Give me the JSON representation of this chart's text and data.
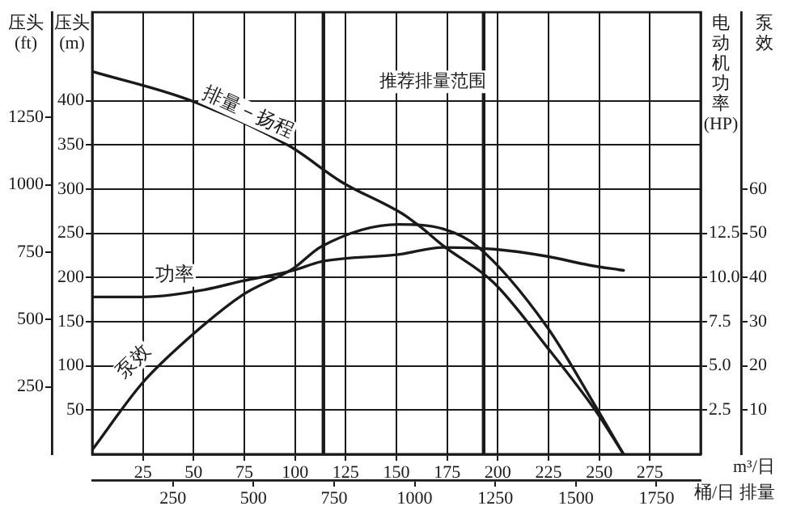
{
  "chart_data": [
    {
      "type": "line",
      "xlabel": "m³/日",
      "x2label": "桶/日 排量",
      "ylabel": "压头(m)",
      "y2label": "压头(ft)",
      "xlim": [
        0,
        300
      ],
      "xticks": [
        25,
        50,
        75,
        100,
        125,
        150,
        175,
        200,
        225,
        250,
        275
      ],
      "x2lim": [
        0,
        1887
      ],
      "x2ticks": [
        250,
        500,
        750,
        1000,
        1250,
        1500,
        1750
      ],
      "ylim": [
        0,
        500
      ],
      "yticks": [
        50,
        100,
        150,
        200,
        250,
        300,
        350,
        400
      ],
      "y2lim": [
        0,
        1640
      ],
      "y2ticks": [
        250,
        500,
        750,
        1000,
        1250
      ],
      "grid": true,
      "legend": false,
      "marker": "none",
      "line_style": "solid",
      "ref_lines": [
        {
          "axis": "x",
          "value": 114
        },
        {
          "axis": "x",
          "value": 193
        }
      ],
      "annotations": [
        "推荐排量范围"
      ],
      "series": [
        {
          "name": "排量－扬程",
          "color": "#1a1a1a",
          "x": [
            0,
            47.5,
            97,
            123,
            153,
            162,
            173,
            198,
            224,
            248,
            262
          ],
          "values": [
            433,
            401,
            349,
            308,
            272,
            257,
            236,
            194,
            122,
            50,
            0
          ]
        }
      ]
    },
    {
      "type": "line",
      "ylabel": "电动机功率(HP)",
      "y2label": "泵效",
      "tick_labels": "y",
      "xlim": [
        0,
        300
      ],
      "ylim": [
        0,
        25
      ],
      "yticks": [
        {
          "value": 2.5,
          "label": "2.5"
        },
        {
          "value": 5,
          "label": "5.0"
        },
        {
          "value": 7.5,
          "label": "7.5"
        },
        {
          "value": 10,
          "label": "10.0"
        },
        {
          "value": 12.5,
          "label": "12.5"
        }
      ],
      "y2lim": [
        0,
        100
      ],
      "y2ticks": [
        10,
        20,
        30,
        40,
        50,
        60
      ],
      "legend": false,
      "marker": "none",
      "line_style": "solid",
      "series": [
        {
          "name": "功率",
          "color": "#1a1a1a",
          "x": [
            0,
            24.5,
            55,
            74,
            99,
            113,
            151,
            173,
            198,
            224,
            245,
            262
          ],
          "values": [
            8.9,
            8.9,
            9.3,
            9.8,
            10.4,
            10.9,
            11.3,
            11.7,
            11.6,
            11.2,
            10.7,
            10.4
          ]
        },
        {
          "name": "泵效",
          "color": "#1a1a1a",
          "axis": "y2",
          "x": [
            0,
            24.5,
            42,
            74,
            99,
            113,
            151,
            173,
            190,
            224,
            248,
            262
          ],
          "values": [
            1,
            16,
            24,
            36,
            42,
            47,
            52,
            51,
            47,
            29,
            11,
            0
          ]
        }
      ]
    }
  ]
}
